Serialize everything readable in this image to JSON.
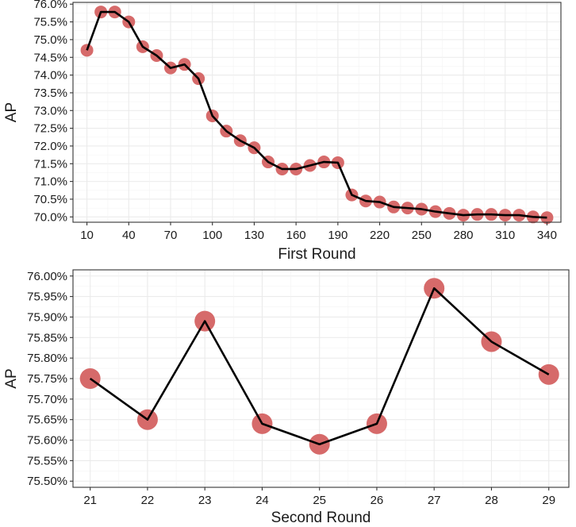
{
  "chart_data": [
    {
      "type": "line",
      "xlabel": "First Round",
      "ylabel": "AP",
      "xlim": [
        0,
        350
      ],
      "ylim": [
        69.85,
        76.05
      ],
      "x_ticks": [
        10,
        40,
        70,
        100,
        130,
        160,
        190,
        220,
        250,
        280,
        310,
        340
      ],
      "x_tick_labels": [
        "10",
        "40",
        "70",
        "100",
        "130",
        "160",
        "190",
        "220",
        "250",
        "280",
        "310",
        "340"
      ],
      "y_ticks": [
        70.0,
        70.5,
        71.0,
        71.5,
        72.0,
        72.5,
        73.0,
        73.5,
        74.0,
        74.5,
        75.0,
        75.5,
        76.0
      ],
      "y_tick_labels": [
        "70.0%",
        "70.5%",
        "71.0%",
        "71.5%",
        "72.0%",
        "72.5%",
        "73.0%",
        "73.5%",
        "74.0%",
        "74.5%",
        "75.0%",
        "75.5%",
        "76.0%"
      ],
      "grid": true,
      "series": [
        {
          "x": [
            10,
            20,
            30,
            40,
            50,
            60,
            70,
            80,
            90,
            100,
            110,
            120,
            130,
            140,
            150,
            160,
            170,
            180,
            190,
            200,
            210,
            220,
            230,
            240,
            250,
            260,
            270,
            280,
            290,
            300,
            310,
            320,
            330,
            340
          ],
          "values": [
            74.7,
            75.78,
            75.78,
            75.5,
            74.8,
            74.55,
            74.2,
            74.3,
            73.9,
            72.85,
            72.42,
            72.15,
            71.95,
            71.55,
            71.35,
            71.35,
            71.45,
            71.55,
            71.53,
            70.62,
            70.45,
            70.42,
            70.28,
            70.25,
            70.22,
            70.15,
            70.1,
            70.05,
            70.07,
            70.07,
            70.05,
            70.05,
            70.0,
            69.98
          ],
          "point_color": "#d66a6a",
          "line_color": "#000000"
        }
      ]
    },
    {
      "type": "line",
      "xlabel": "Second Round",
      "ylabel": "AP",
      "xlim": [
        20.7,
        29.35
      ],
      "ylim": [
        75.485,
        76.015
      ],
      "x_ticks": [
        21,
        22,
        23,
        24,
        25,
        26,
        27,
        28,
        29
      ],
      "x_tick_labels": [
        "21",
        "22",
        "23",
        "24",
        "25",
        "26",
        "27",
        "28",
        "29"
      ],
      "y_ticks": [
        75.5,
        75.55,
        75.6,
        75.65,
        75.7,
        75.75,
        75.8,
        75.85,
        75.9,
        75.95,
        76.0
      ],
      "y_tick_labels": [
        "75.50%",
        "75.55%",
        "75.60%",
        "75.65%",
        "75.70%",
        "75.75%",
        "75.80%",
        "75.85%",
        "75.90%",
        "75.95%",
        "76.00%"
      ],
      "grid": true,
      "series": [
        {
          "x": [
            21,
            22,
            23,
            24,
            25,
            26,
            27,
            28,
            29
          ],
          "values": [
            75.75,
            75.65,
            75.89,
            75.64,
            75.59,
            75.64,
            75.97,
            75.84,
            75.76
          ],
          "point_color": "#d66a6a",
          "line_color": "#000000"
        }
      ]
    }
  ]
}
